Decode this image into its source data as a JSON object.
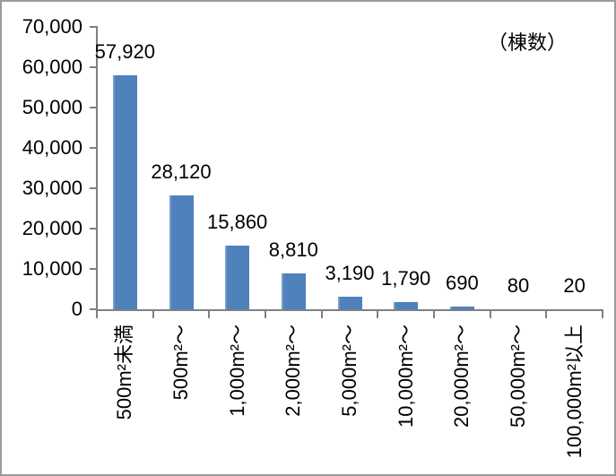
{
  "chart_data": {
    "type": "bar",
    "title": "",
    "unit_label": "（棟数）",
    "categories": [
      "500m²未満",
      "500m²～",
      "1,000m²～",
      "2,000m²～",
      "5,000m²～",
      "10,000m²～",
      "20,000m²～",
      "50,000m²～",
      "100,000m²以上"
    ],
    "values": [
      57920,
      28120,
      15860,
      8810,
      3190,
      1790,
      690,
      80,
      20
    ],
    "value_labels": [
      "57,920",
      "28,120",
      "15,860",
      "8,810",
      "3,190",
      "1,790",
      "690",
      "80",
      "20"
    ],
    "y_ticks": [
      0,
      10000,
      20000,
      30000,
      40000,
      50000,
      60000,
      70000
    ],
    "y_tick_labels": [
      "0",
      "10,000",
      "20,000",
      "30,000",
      "40,000",
      "50,000",
      "60,000",
      "70,000"
    ],
    "xlabel": "",
    "ylabel": "",
    "ylim": [
      0,
      70000
    ],
    "grid": false,
    "legend": "none",
    "bar_color": "#4f81bd",
    "axis_color": "#808080",
    "text_color": "#000000",
    "border_color": "#9c9c9c"
  }
}
